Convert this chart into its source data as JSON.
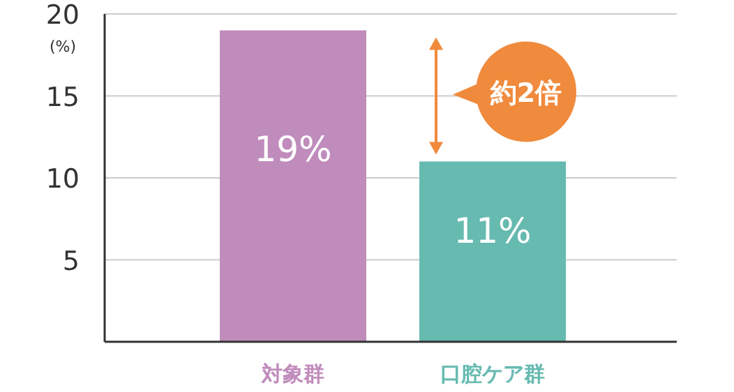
{
  "chart_data": {
    "type": "bar",
    "categories": [
      "対象群",
      "口腔ケア群"
    ],
    "values": [
      19,
      11
    ],
    "colors": [
      "#c08cbc",
      "#66bab0"
    ],
    "value_labels": [
      "19%",
      "11%"
    ],
    "ylabel": "(%)",
    "ylim": [
      0,
      20
    ],
    "yticks": [
      5,
      10,
      15,
      20
    ],
    "grid": "y",
    "annotations": [
      "約2倍"
    ]
  }
}
